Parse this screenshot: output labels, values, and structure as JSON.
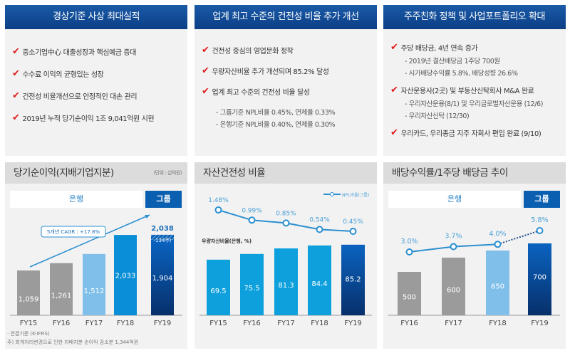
{
  "panels": [
    {
      "title": "경상기준 사상 최대실적",
      "items": [
        {
          "text": "중소기업中心 대출성장과 핵심예금 증대"
        },
        {
          "text": "수수료 이익의  균형있는 성장"
        },
        {
          "text": "건전성 비율개선으로 안정적인 대손 관리"
        },
        {
          "text": "2019년 누적 당기순이익  1조 9,041억원 시현"
        }
      ]
    },
    {
      "title": "업계 최고 수준의  건전성 비율 추가 개선",
      "items": [
        {
          "text": "건전성 중심의 영업문화 정착"
        },
        {
          "text": "우량자산비율 추가 개선되며  85.2% 달성"
        },
        {
          "text": "업계 최고 수준의  건전성 비율 달성",
          "subs": [
            "- 그룹기준 NPL비율 0.45%, 연체율 0.33%",
            "- 은행기준 NPL비율 0.40%, 연체율  0.30%"
          ]
        }
      ]
    },
    {
      "title": "주주친화 정책  및  사업포트폴리오 확대",
      "items": [
        {
          "text": "주당 배당금, 4년 연속 증가",
          "subs": [
            "- 2019년 결산배당금 1주당 700원",
            "- 시가배당수익률 5.8%, 배당성향 26.6%"
          ]
        },
        {
          "text": "자산운용사(2곳) 및 부동산신탁회사 M&A  완료",
          "subs": [
            "- 우리자산운용(8/1) 및 우리글로벌자산운용 (12/6)",
            "- 우리자산신탁 (12/30)"
          ]
        },
        {
          "text": "우리카드, 우리종금 지주 자회사 편입 완료 (9/10)"
        }
      ]
    }
  ],
  "icons": {
    "check": "checkmark-icon"
  },
  "tabs": {
    "bank": "은행",
    "group": "그룹"
  },
  "colors": {
    "header": "#0b3f86",
    "gray": "#9b9b9b",
    "light_blue": "#7fbfea",
    "blue": "#0a8fd6",
    "navy": "#0a4a98",
    "line": "#2b8fd0",
    "check": "#e01d1d"
  },
  "chart_data": [
    {
      "type": "bar",
      "title": "당기순이익(지배기업지분)",
      "unit": "(단위 : 십억원)",
      "categories": [
        "FY15",
        "FY16",
        "FY17",
        "FY18",
        "FY19"
      ],
      "values": [
        1059,
        1261,
        1512,
        2033,
        1904
      ],
      "labels": [
        "1,059",
        "1,261",
        "1,512",
        "2,033",
        "1,904"
      ],
      "fy19_adjustment": {
        "value": 134,
        "label": "-134주)"
      },
      "fy19_total": {
        "value": 2038,
        "label": "2,038"
      },
      "annotation": "5개년 CAGR : +17.8%",
      "notes": [
        "· 연결기준 (K-IFRS)",
        "주) 회계처리변경으로 인한 지배지분 순이익 감소분 1,344억원"
      ]
    },
    {
      "type": "bar+line",
      "title": "자산건전성 비율",
      "categories": [
        "FY15",
        "FY16",
        "FY17",
        "FY18",
        "FY19"
      ],
      "bar_series": {
        "name": "우량자산비율(은행, %)",
        "values": [
          69.5,
          75.5,
          81.3,
          84.4,
          85.2
        ]
      },
      "line_series": {
        "name": "NPL비율(그룹)",
        "values": [
          1.48,
          0.99,
          0.85,
          0.54,
          0.45
        ],
        "labels": [
          "1.48%",
          "0.99%",
          "0.85%",
          "0.54%",
          "0.45%"
        ]
      },
      "legend": "top-right"
    },
    {
      "type": "bar+line",
      "title": "배당수익률/1주당 배당금 추이",
      "categories": [
        "FY16",
        "FY17",
        "FY18",
        "FY19"
      ],
      "bar_series": {
        "values": [
          500,
          600,
          650,
          700
        ]
      },
      "line_series": {
        "values": [
          3.0,
          3.7,
          4.0,
          5.8
        ],
        "labels": [
          "3.0%",
          "3.7%",
          "4.0%",
          "5.8%"
        ]
      }
    }
  ]
}
